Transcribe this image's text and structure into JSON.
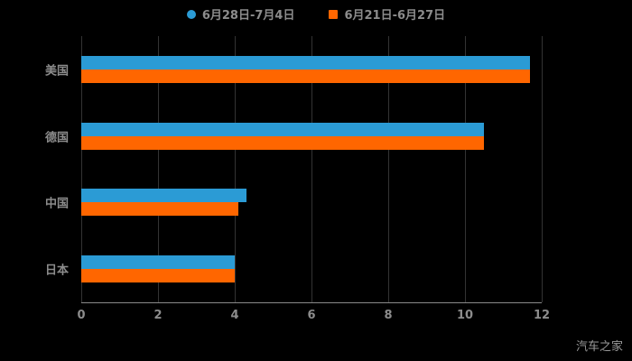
{
  "watermark": "汽车之家",
  "legend": [
    {
      "label": "6月28日-7月4日",
      "color": "#2b9bd5",
      "marker": "circle"
    },
    {
      "label": "6月21日-6月27日",
      "color": "#ff6600",
      "marker": "square"
    }
  ],
  "chart_data": {
    "type": "bar",
    "orientation": "horizontal",
    "title": "",
    "xlabel": "",
    "ylabel": "",
    "categories": [
      "美国",
      "德国",
      "中国",
      "日本"
    ],
    "series": [
      {
        "name": "6月28日-7月4日",
        "color": "#2b9bd5",
        "values": [
          11.7,
          10.5,
          4.3,
          4.0
        ]
      },
      {
        "name": "6月21日-6月27日",
        "color": "#ff6600",
        "values": [
          11.7,
          10.5,
          4.1,
          4.0
        ]
      }
    ],
    "xlim": [
      0,
      12
    ],
    "xticks": [
      0,
      2,
      4,
      6,
      8,
      10,
      12
    ],
    "grid": true,
    "legend_position": "top",
    "background": "#000000"
  }
}
